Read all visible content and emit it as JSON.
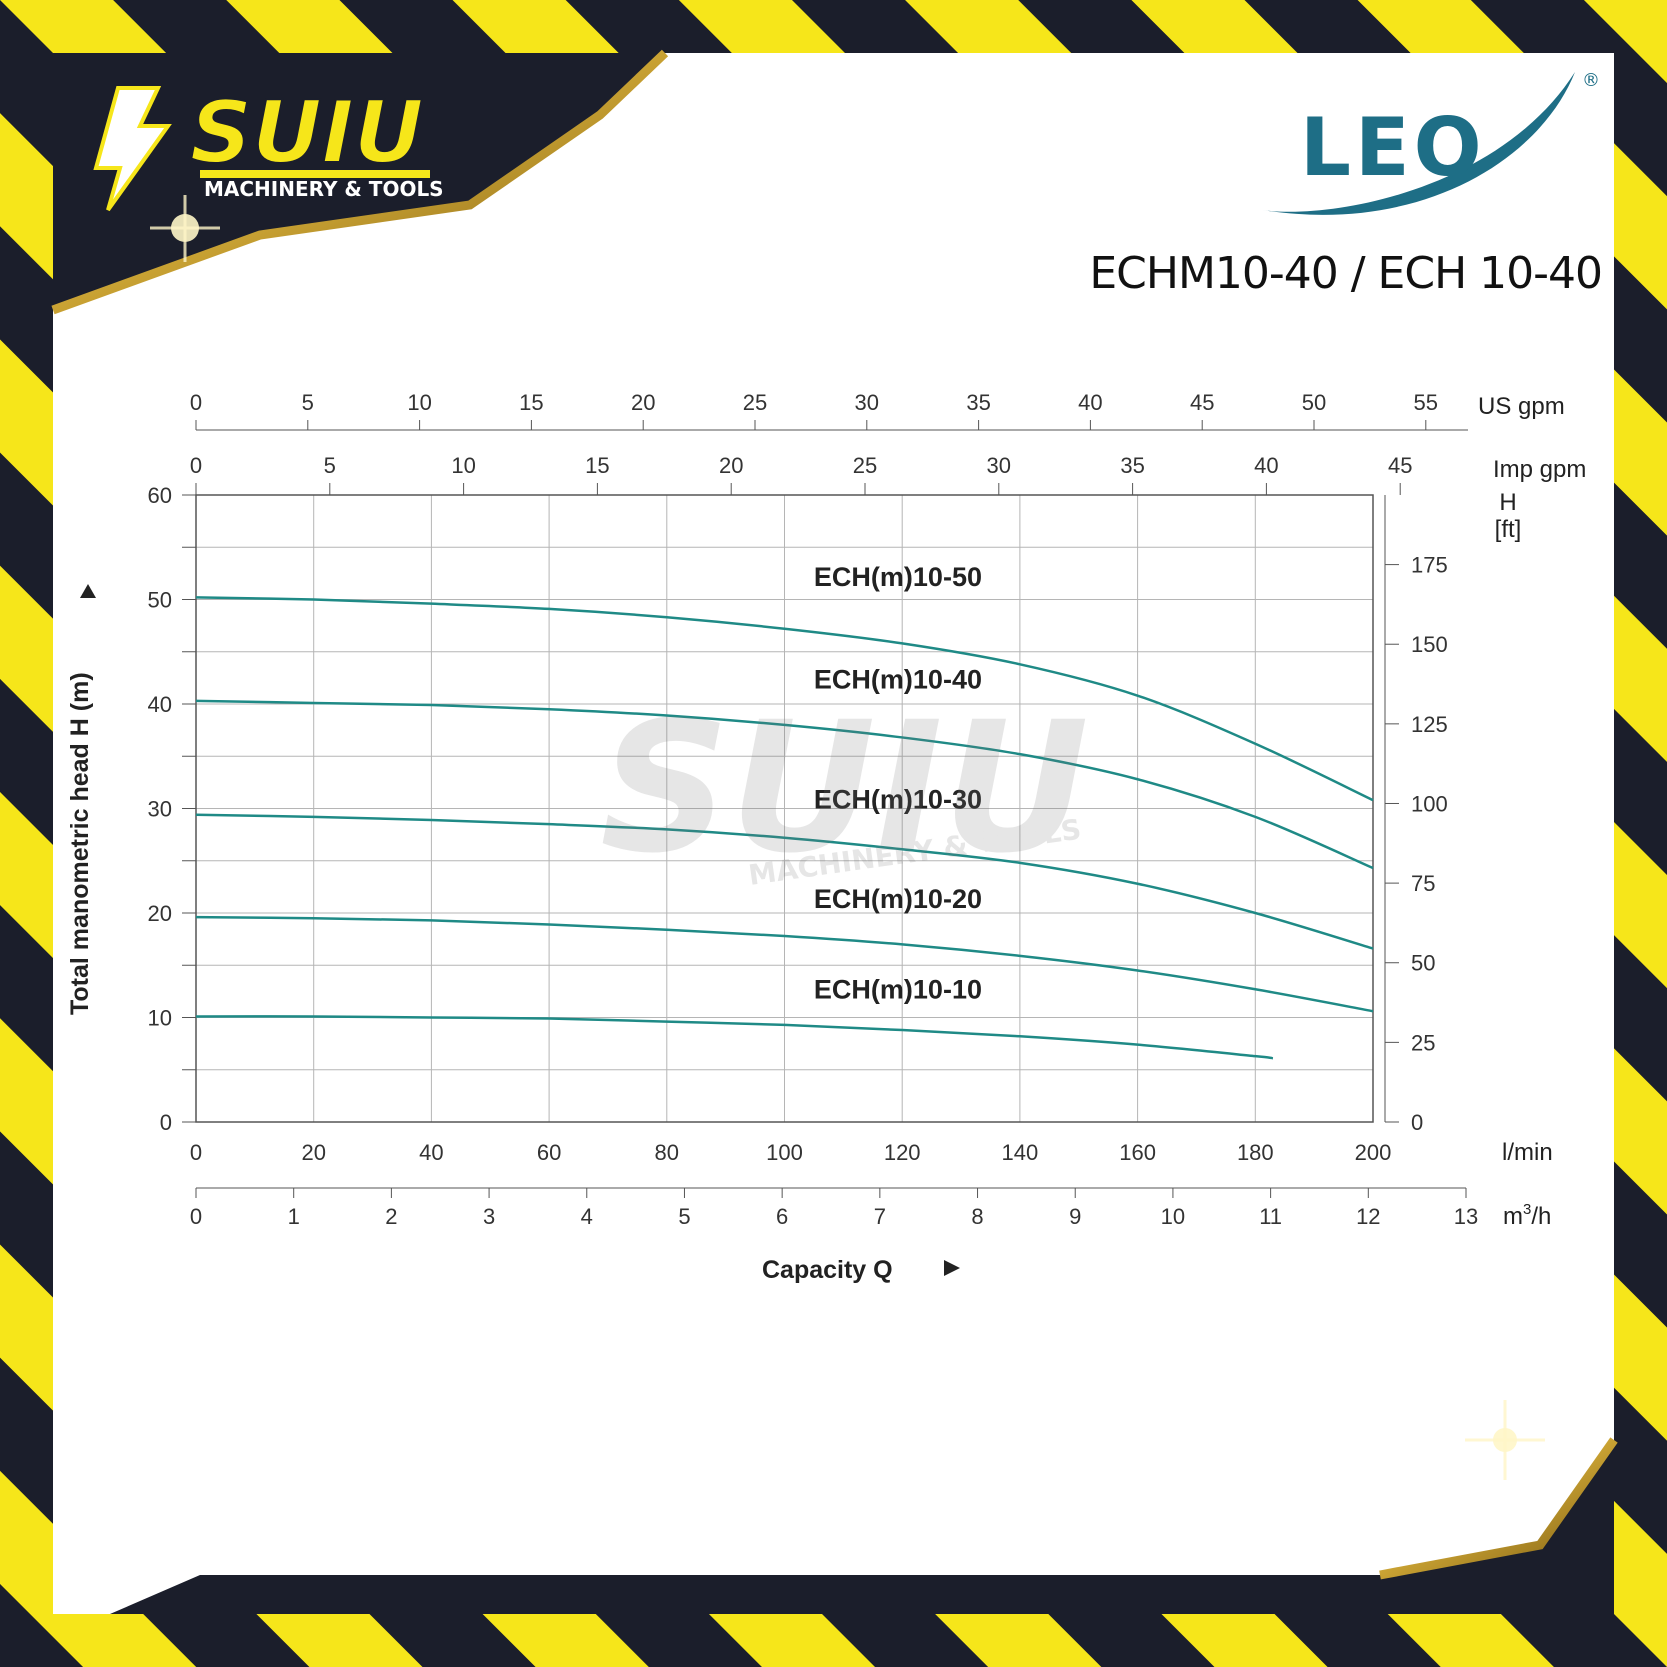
{
  "brand": {
    "logo_text": "SUIU",
    "logo_subtitle": "MACHINERY & TOOLS",
    "maker_logo": "LEO",
    "maker_mark": "®",
    "model_title": "ECHM10-40 / ECH 10-40"
  },
  "colors": {
    "stripe_yellow": "#f6e61a",
    "stripe_dark": "#1b1e2b",
    "curve": "#1f8a86",
    "leo_blue": "#1e6e86",
    "grid": "#b5b5b5",
    "gold": "#c9a233"
  },
  "icons": [
    "lightning-bolt-icon",
    "leo-swoosh-icon"
  ],
  "chart_data": {
    "type": "line",
    "x": {
      "name": "l/min",
      "range": [
        0,
        200
      ],
      "ticks": [
        0,
        20,
        40,
        60,
        80,
        100,
        120,
        140,
        160,
        180,
        200
      ],
      "unit_label": "l/min",
      "title": "Capacity Q"
    },
    "x_m3h": {
      "name": "m³/h",
      "range": [
        0,
        13
      ],
      "ticks": [
        0,
        1,
        2,
        3,
        4,
        5,
        6,
        7,
        8,
        9,
        10,
        11,
        12,
        13
      ],
      "unit_label_base": "m",
      "unit_label_sup": "3",
      "unit_label_tail": "/h"
    },
    "x_us_gpm": {
      "name": "US gpm",
      "ticks": [
        0,
        5,
        10,
        15,
        20,
        25,
        30,
        35,
        40,
        45,
        50,
        55
      ],
      "unit_label": "US gpm"
    },
    "x_imp_gpm": {
      "name": "Imp gpm",
      "ticks": [
        0,
        5,
        10,
        15,
        20,
        25,
        30,
        35,
        40,
        45
      ],
      "unit_label": "Imp gpm"
    },
    "y": {
      "name": "H (m)",
      "range": [
        0,
        60
      ],
      "ticks": [
        0,
        10,
        20,
        30,
        40,
        50,
        60
      ],
      "title": "Total manometric head H (m)"
    },
    "y_ft": {
      "name": "H [ft]",
      "range": [
        0,
        196.85
      ],
      "ticks": [
        0,
        25,
        50,
        75,
        100,
        125,
        150,
        175
      ],
      "unit_label_top": "H",
      "unit_label_bottom": "[ft]"
    },
    "grid": true,
    "series": [
      {
        "name": "ECH(m)10-50",
        "label_at": [
          105,
          51.3
        ],
        "points": [
          [
            0,
            50.2
          ],
          [
            20,
            50
          ],
          [
            40,
            49.6
          ],
          [
            60,
            49.1
          ],
          [
            80,
            48.3
          ],
          [
            100,
            47.2
          ],
          [
            120,
            45.8
          ],
          [
            140,
            43.8
          ],
          [
            160,
            40.8
          ],
          [
            180,
            36.2
          ],
          [
            200,
            30.8
          ]
        ]
      },
      {
        "name": "ECH(m)10-40",
        "label_at": [
          105,
          41.5
        ],
        "points": [
          [
            0,
            40.3
          ],
          [
            20,
            40.1
          ],
          [
            40,
            39.9
          ],
          [
            60,
            39.5
          ],
          [
            80,
            38.9
          ],
          [
            100,
            38
          ],
          [
            120,
            36.8
          ],
          [
            140,
            35.2
          ],
          [
            160,
            32.8
          ],
          [
            180,
            29.2
          ],
          [
            200,
            24.3
          ]
        ]
      },
      {
        "name": "ECH(m)10-30",
        "label_at": [
          105,
          30.0
        ],
        "points": [
          [
            0,
            29.4
          ],
          [
            20,
            29.2
          ],
          [
            40,
            28.9
          ],
          [
            60,
            28.5
          ],
          [
            80,
            28
          ],
          [
            100,
            27.2
          ],
          [
            120,
            26.1
          ],
          [
            140,
            24.8
          ],
          [
            160,
            22.8
          ],
          [
            180,
            20
          ],
          [
            200,
            16.6
          ]
        ]
      },
      {
        "name": "ECH(m)10-20",
        "label_at": [
          105,
          20.5
        ],
        "points": [
          [
            0,
            19.6
          ],
          [
            20,
            19.5
          ],
          [
            40,
            19.3
          ],
          [
            60,
            18.9
          ],
          [
            80,
            18.4
          ],
          [
            100,
            17.8
          ],
          [
            120,
            17
          ],
          [
            140,
            15.9
          ],
          [
            160,
            14.5
          ],
          [
            180,
            12.7
          ],
          [
            200,
            10.6
          ]
        ]
      },
      {
        "name": "ECH(m)10-10",
        "label_at": [
          105,
          11.8
        ],
        "points": [
          [
            0,
            10.1
          ],
          [
            20,
            10.1
          ],
          [
            40,
            10
          ],
          [
            60,
            9.9
          ],
          [
            80,
            9.6
          ],
          [
            100,
            9.3
          ],
          [
            120,
            8.8
          ],
          [
            140,
            8.2
          ],
          [
            160,
            7.4
          ],
          [
            180,
            6.3
          ],
          [
            183,
            6.1
          ]
        ]
      }
    ]
  }
}
